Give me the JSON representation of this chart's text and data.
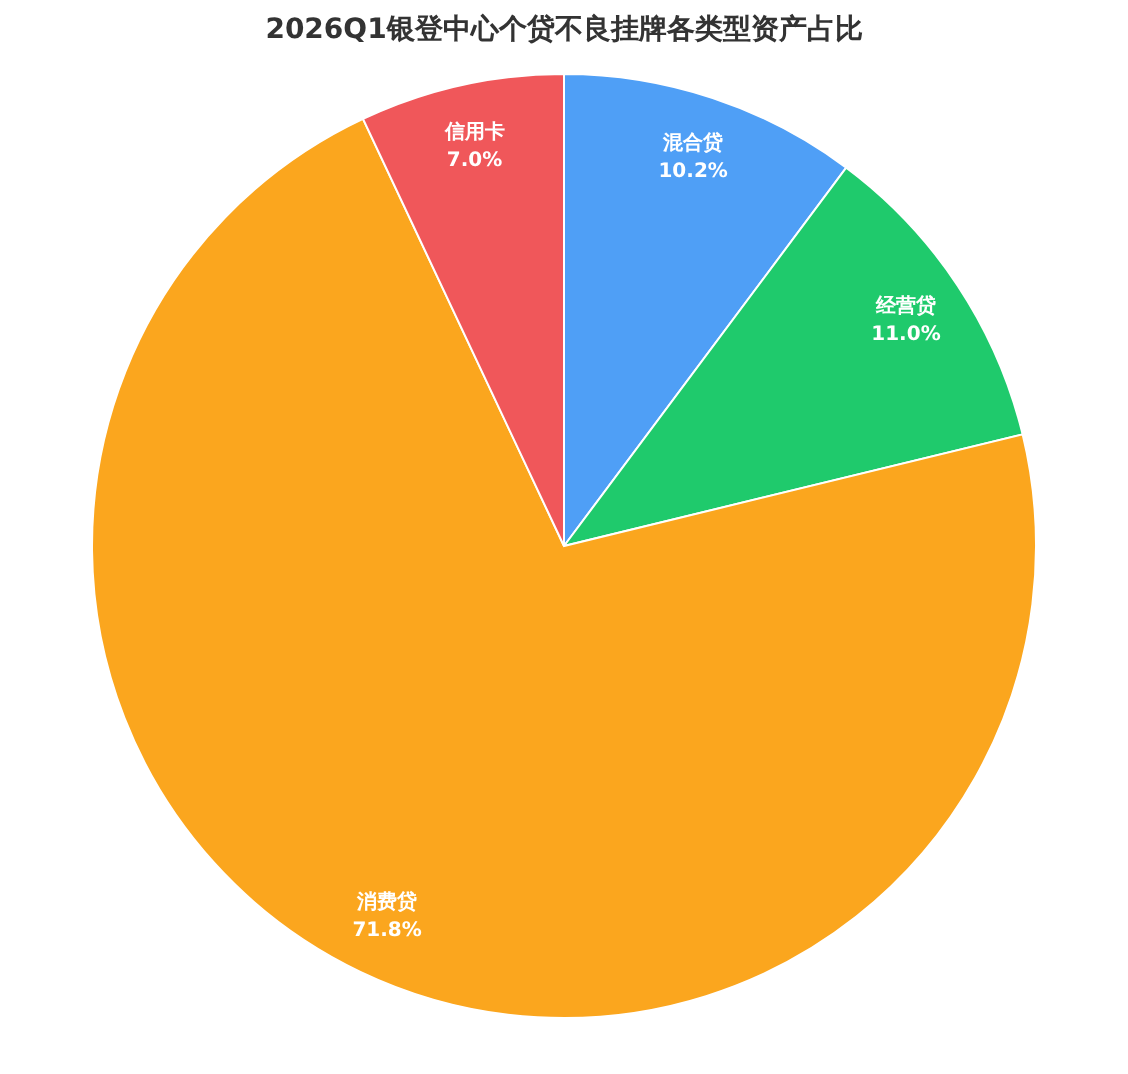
{
  "chart_data": {
    "type": "pie",
    "title": "2026Q1银登中心个贷不良挂牌各类型资产占比",
    "categories": [
      "混合贷",
      "经营贷",
      "消费贷",
      "信用卡"
    ],
    "values": [
      10.2,
      11.0,
      71.8,
      7.0
    ],
    "value_labels": [
      "10.2%",
      "11.0%",
      "71.8%",
      "7.0%"
    ],
    "colors": [
      "#4f9ff6",
      "#1fca6c",
      "#fba61e",
      "#f0575a"
    ]
  }
}
